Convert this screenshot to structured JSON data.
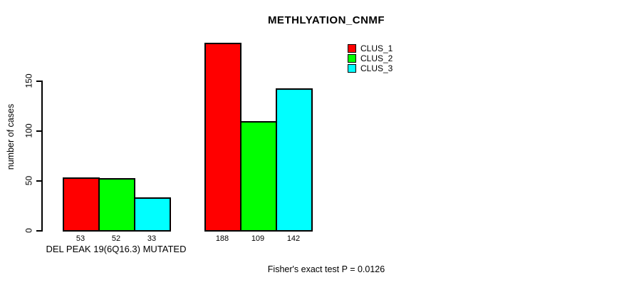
{
  "figure": {
    "background_color": "#ffffff",
    "axis_color": "#000000",
    "text_color": "#000000"
  },
  "chart_data": {
    "type": "bar",
    "title": "METHLYATION_CNMF",
    "ylabel": "number of cases",
    "xlabel": "",
    "ylim": [
      0,
      150
    ],
    "yticks": [
      0,
      50,
      100,
      150
    ],
    "grid": false,
    "legend_position": "top-right",
    "bar_value_labels_shown": true,
    "groups": [
      {
        "label": "DEL PEAK 19(6Q16.3) MUTATED"
      },
      {
        "label": ""
      }
    ],
    "series": [
      {
        "name": "CLUS_1",
        "color": "#ff0000",
        "values": [
          53,
          188
        ]
      },
      {
        "name": "CLUS_2",
        "color": "#00ff00",
        "values": [
          52,
          109
        ]
      },
      {
        "name": "CLUS_3",
        "color": "#00ffff",
        "values": [
          33,
          142
        ]
      }
    ],
    "footnote": "Fisher's exact test P = 0.0126"
  }
}
